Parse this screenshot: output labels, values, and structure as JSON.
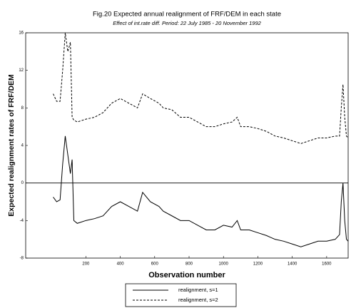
{
  "chart_data": {
    "type": "line",
    "title": "Fig.20 Expected annual realignment of FRF/DEM in each state",
    "subtitle": "Effect of int.rate diff. Period: 22 July 1985 - 20 November 1992",
    "x_label": "Observation number",
    "y_label": "Expected realignment rates of FRF/DEM",
    "x": [
      10,
      30,
      50,
      65,
      80,
      95,
      110,
      120,
      130,
      150,
      200,
      250,
      300,
      350,
      400,
      450,
      500,
      530,
      575,
      625,
      650,
      700,
      750,
      800,
      850,
      900,
      950,
      1000,
      1050,
      1080,
      1100,
      1150,
      1200,
      1250,
      1300,
      1350,
      1400,
      1450,
      1500,
      1550,
      1600,
      1650,
      1675,
      1685,
      1695,
      1705,
      1715,
      1725
    ],
    "series": [
      {
        "name": "realignment, s=1",
        "color": "#000000",
        "linestyle": "solid",
        "values": [
          -1.5,
          -2,
          -1.8,
          2,
          5,
          3,
          1,
          2.5,
          -4,
          -4.3,
          -4,
          -3.8,
          -3.5,
          -2.5,
          -2,
          -2.5,
          -3,
          -1,
          -2,
          -2.5,
          -3,
          -3.5,
          -4,
          -4,
          -4.5,
          -5,
          -5,
          -4.5,
          -4.7,
          -4,
          -5,
          -5,
          -5.3,
          -5.6,
          -6,
          -6.2,
          -6.5,
          -6.8,
          -6.5,
          -6.2,
          -6.2,
          -6,
          -5.5,
          -2,
          0,
          -4,
          -6,
          -6.2
        ]
      },
      {
        "name": "realignment, s=2",
        "color": "#000000",
        "linestyle": "dashed",
        "values": [
          9.5,
          8.7,
          8.7,
          12,
          16,
          14,
          15,
          7,
          6.7,
          6.5,
          6.8,
          7,
          7.5,
          8.5,
          9,
          8.5,
          8,
          9.5,
          9,
          8.5,
          8,
          7.8,
          7,
          7,
          6.5,
          6,
          6,
          6.3,
          6.5,
          7,
          6,
          6,
          5.8,
          5.5,
          5,
          4.8,
          4.5,
          4.2,
          4.5,
          4.8,
          4.8,
          5,
          5,
          8,
          10.5,
          7,
          5,
          4.8
        ]
      }
    ],
    "xlim": [
      -150,
      1725
    ],
    "xticks": [
      200,
      400,
      600,
      800,
      1000,
      1200,
      1400,
      1600
    ],
    "ylim": [
      -8,
      16
    ],
    "yticks": [
      -8,
      -4,
      0,
      4,
      8,
      12,
      16
    ],
    "reference_line_y": 0,
    "legend": "bottom"
  }
}
